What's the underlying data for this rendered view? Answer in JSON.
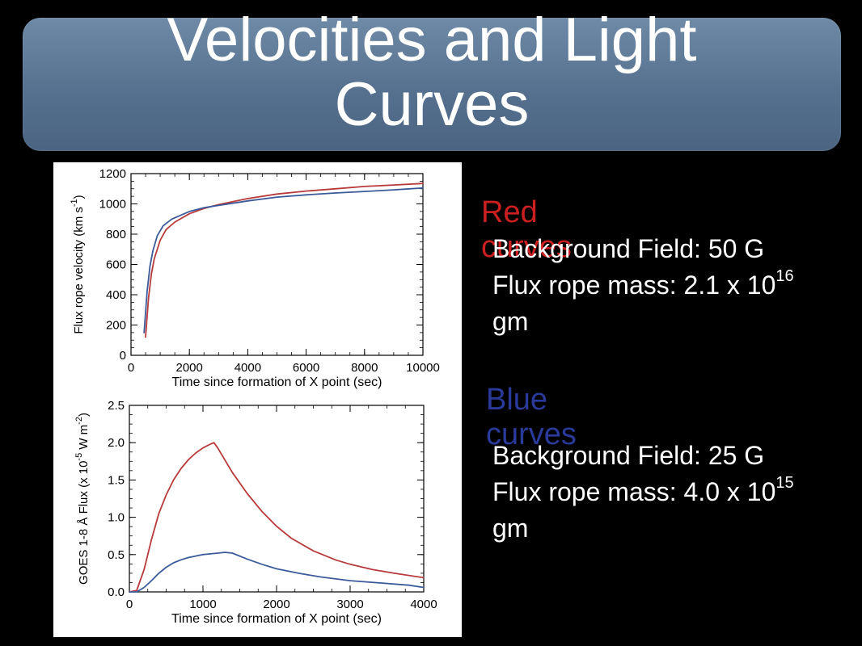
{
  "slide": {
    "title_line1": "Velocities and Light",
    "title_line2": "Curves"
  },
  "legend": {
    "red": {
      "heading": "Red curves",
      "color": "#cc1f1f",
      "field_label": "Background Field: 50 G",
      "mass_prefix": "Flux rope mass: 2.1 x 10",
      "mass_exp": "16",
      "mass_unit": "gm"
    },
    "blue": {
      "heading": "Blue curves",
      "color": "#2a3a9a",
      "field_label": "Background Field: 25 G",
      "mass_prefix": "Flux rope mass: 4.0 x 10",
      "mass_exp": "15",
      "mass_unit": "gm"
    }
  },
  "chart_data": [
    {
      "type": "line",
      "xlabel": "Time since formation of X point (sec)",
      "ylabel_main": "Flux rope velocity (km s",
      "ylabel_sup": "-1",
      "ylabel_end": ")",
      "xlim": [
        0,
        10000
      ],
      "ylim": [
        0,
        1200
      ],
      "xticks": [
        0,
        2000,
        4000,
        6000,
        8000,
        10000
      ],
      "yticks": [
        0,
        200,
        400,
        600,
        800,
        1000,
        1200
      ],
      "series": [
        {
          "color": "#b83a3a",
          "x": [
            500,
            600,
            700,
            800,
            1000,
            1200,
            1500,
            2000,
            2500,
            3000,
            4000,
            5000,
            6000,
            7000,
            8000,
            9000,
            10000
          ],
          "y": [
            120,
            380,
            540,
            640,
            760,
            830,
            880,
            935,
            970,
            995,
            1035,
            1065,
            1085,
            1100,
            1115,
            1125,
            1135
          ]
        },
        {
          "color": "#3a5a9a",
          "x": [
            450,
            550,
            650,
            750,
            900,
            1100,
            1400,
            2000,
            2500,
            3000,
            4000,
            5000,
            6000,
            7000,
            8000,
            9000,
            10000
          ],
          "y": [
            150,
            420,
            590,
            690,
            790,
            855,
            900,
            950,
            975,
            990,
            1020,
            1045,
            1060,
            1072,
            1082,
            1093,
            1105
          ]
        }
      ]
    },
    {
      "type": "line",
      "xlabel": "Time since formation of X point (sec)",
      "ylabel_main": "GOES 1-8 Å Flux (x 10",
      "ylabel_sup": "-5",
      "ylabel_end": " W m",
      "ylabel_sup2": "-2",
      "ylabel_end2": ")",
      "xlim": [
        0,
        4000
      ],
      "ylim": [
        0.0,
        2.5
      ],
      "xticks": [
        0,
        1000,
        2000,
        3000,
        4000
      ],
      "yticks": [
        0.0,
        0.5,
        1.0,
        1.5,
        2.0,
        2.5
      ],
      "series": [
        {
          "color": "#b83a3a",
          "x": [
            0,
            100,
            200,
            300,
            400,
            500,
            600,
            700,
            800,
            900,
            1000,
            1100,
            1150,
            1200,
            1400,
            1600,
            1800,
            2000,
            2200,
            2500,
            2800,
            3000,
            3300,
            3600,
            4000
          ],
          "y": [
            0.0,
            0.02,
            0.3,
            0.7,
            1.05,
            1.3,
            1.5,
            1.65,
            1.77,
            1.86,
            1.93,
            1.98,
            2.0,
            1.93,
            1.6,
            1.32,
            1.08,
            0.88,
            0.72,
            0.55,
            0.43,
            0.37,
            0.3,
            0.25,
            0.19
          ]
        },
        {
          "color": "#3a5a9a",
          "x": [
            0,
            100,
            200,
            300,
            400,
            500,
            600,
            700,
            800,
            900,
            1000,
            1100,
            1200,
            1300,
            1400,
            1600,
            1800,
            2000,
            2300,
            2600,
            3000,
            3400,
            3800,
            4000
          ],
          "y": [
            0.0,
            0.0,
            0.06,
            0.15,
            0.25,
            0.33,
            0.39,
            0.43,
            0.46,
            0.48,
            0.5,
            0.51,
            0.52,
            0.53,
            0.52,
            0.44,
            0.37,
            0.31,
            0.25,
            0.2,
            0.15,
            0.12,
            0.09,
            0.06
          ]
        }
      ]
    }
  ]
}
